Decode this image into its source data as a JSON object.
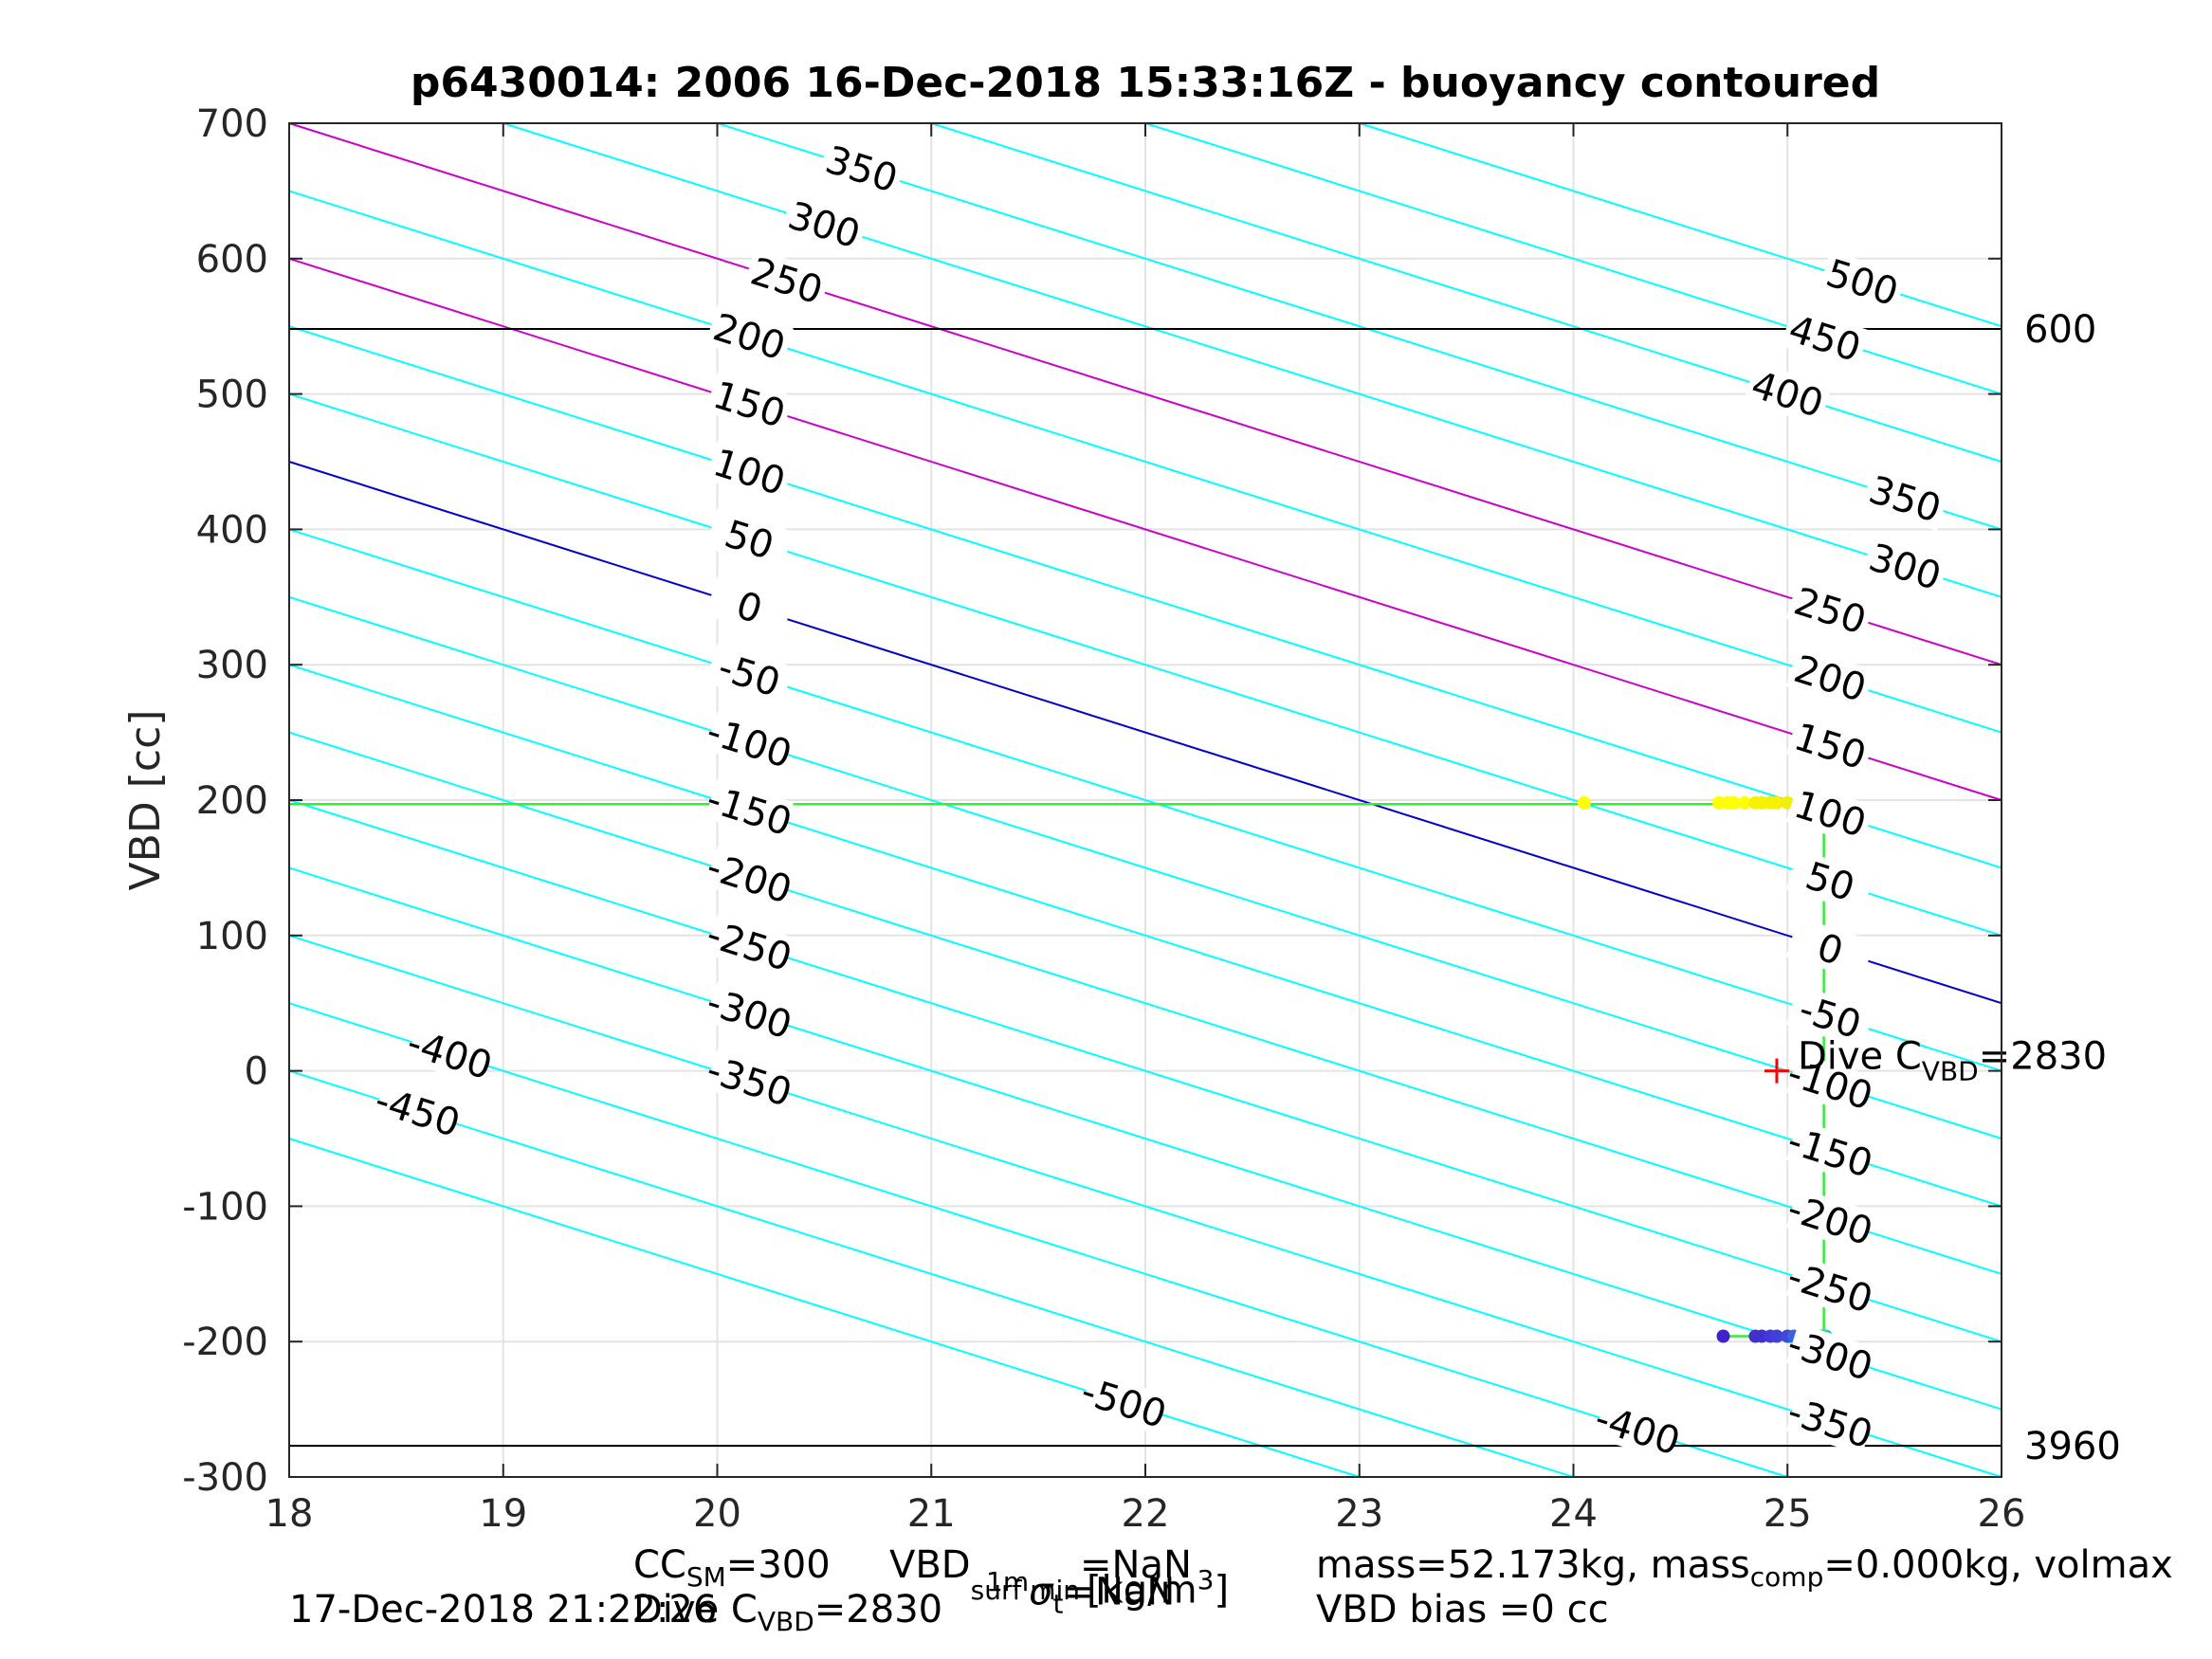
{
  "chart_data": {
    "type": "scatter",
    "title": "p6430014:  2006 16-Dec-2018 15:33:16Z - buoyancy contoured",
    "ylabel": "VBD [cc]",
    "xlabel": "1m σt [kg/m3]",
    "xlim": [
      18,
      26
    ],
    "ylim": [
      -300,
      700
    ],
    "xticks": [
      "18",
      "19",
      "20",
      "21",
      "22",
      "23",
      "24",
      "25",
      "26"
    ],
    "yticks": [
      "-300",
      "-200",
      "-100",
      "0",
      "100",
      "200",
      "300",
      "400",
      "500",
      "600",
      "700"
    ],
    "grid": true,
    "contours": {
      "levels": [
        -500,
        -450,
        -400,
        -350,
        -300,
        -250,
        -200,
        -150,
        -100,
        -50,
        0,
        50,
        100,
        150,
        200,
        250,
        300,
        350,
        400,
        450,
        500
      ],
      "color_default": "#00ffff",
      "color_zero": "#0000cc",
      "color_highlight": "#cc00cc",
      "highlight_levels": [
        150,
        250
      ],
      "labels_left": [
        {
          "text": "350",
          "level": 350
        },
        {
          "text": "300",
          "level": 300
        },
        {
          "text": "250",
          "level": 250
        },
        {
          "text": "200",
          "level": 200
        },
        {
          "text": "150",
          "level": 150
        },
        {
          "text": "100",
          "level": 100
        },
        {
          "text": "50",
          "level": 50
        },
        {
          "text": "0",
          "level": 0
        },
        {
          "text": "-50",
          "level": -50
        },
        {
          "text": "-100",
          "level": -100
        },
        {
          "text": "-150",
          "level": -150
        },
        {
          "text": "-200",
          "level": -200
        },
        {
          "text": "-250",
          "level": -250
        },
        {
          "text": "-300",
          "level": -300
        },
        {
          "text": "-350",
          "level": -350
        },
        {
          "text": "-400",
          "level": -400
        },
        {
          "text": "-450",
          "level": -450
        },
        {
          "text": "-500",
          "level": -500
        }
      ],
      "labels_right": [
        {
          "text": "500",
          "level": 500
        },
        {
          "text": "450",
          "level": 450
        },
        {
          "text": "400",
          "level": 400
        },
        {
          "text": "350",
          "level": 350
        },
        {
          "text": "300",
          "level": 300
        },
        {
          "text": "250",
          "level": 250
        },
        {
          "text": "200",
          "level": 200
        },
        {
          "text": "150",
          "level": 150
        },
        {
          "text": "100",
          "level": 100
        },
        {
          "text": "50",
          "level": 50
        },
        {
          "text": "0",
          "level": 0
        },
        {
          "text": "-50",
          "level": -50
        },
        {
          "text": "-100",
          "level": -100
        },
        {
          "text": "-150",
          "level": -150
        },
        {
          "text": "-200",
          "level": -200
        },
        {
          "text": "-250",
          "level": -250
        },
        {
          "text": "-300",
          "level": -300
        },
        {
          "text": "-350",
          "level": -350
        },
        {
          "text": "-400",
          "level": -400
        }
      ]
    },
    "reference_lines": [
      {
        "y": 548,
        "label": "600",
        "color": "#000000"
      },
      {
        "y": -277,
        "label": "3960",
        "color": "#000000"
      }
    ],
    "path_line": {
      "color": "#33ee33",
      "points": [
        [
          18,
          197
        ],
        [
          25.17,
          197
        ],
        [
          25.17,
          -196
        ],
        [
          24.7,
          -196
        ]
      ]
    },
    "series": [
      {
        "color_hint": "yellow",
        "points": [
          [
            24.05,
            198
          ],
          [
            24.68,
            198
          ],
          [
            24.72,
            198
          ],
          [
            24.75,
            198
          ],
          [
            24.8,
            198
          ],
          [
            24.85,
            198
          ],
          [
            24.88,
            198
          ],
          [
            24.92,
            198
          ],
          [
            24.95,
            198
          ],
          [
            25.0,
            198
          ],
          [
            25.05,
            198
          ],
          [
            25.08,
            198
          ],
          [
            25.1,
            198
          ],
          [
            25.12,
            198
          ],
          [
            25.14,
            198
          ],
          [
            25.16,
            198
          ],
          [
            25.18,
            198
          ]
        ],
        "colors": [
          "#ffff00",
          "#ffff00",
          "#ffff00",
          "#ffff00",
          "#ffff00",
          "#f5f200",
          "#f5f200",
          "#f5f200",
          "#f5f200",
          "#eeee10",
          "#f0e020",
          "#f0d030",
          "#e8c830",
          "#e0c040",
          "#d8c840",
          "#d0c850",
          "#c8d050"
        ]
      },
      {
        "color_hint": "blue",
        "points": [
          [
            24.7,
            -196
          ],
          [
            24.85,
            -196
          ],
          [
            24.88,
            -196
          ],
          [
            24.92,
            -196
          ],
          [
            24.95,
            -196
          ],
          [
            25.0,
            -196
          ],
          [
            25.03,
            -196
          ],
          [
            25.06,
            -196
          ],
          [
            25.09,
            -196
          ],
          [
            25.12,
            -196
          ],
          [
            25.14,
            -196
          ],
          [
            25.16,
            -196
          ],
          [
            25.18,
            -196
          ]
        ],
        "colors": [
          "#4020d0",
          "#4030d0",
          "#4030d0",
          "#4038d8",
          "#4040d8",
          "#4048d8",
          "#4060e0",
          "#4070e0",
          "#3888e0",
          "#30a0d8",
          "#28b8c8",
          "#20c8b8",
          "#20d0b0"
        ]
      }
    ],
    "dive_marker": {
      "x": 24.95,
      "y": 0,
      "color": "#ff0000",
      "label_prefix": "Dive C",
      "label_sub": "VBD",
      "label_suffix": "=2830"
    }
  },
  "footer": {
    "cc_prefix": "CC",
    "cc_sub": "SM",
    "cc_value": "=300",
    "vbd_prefix": "VBD",
    "vbd_sub": "surf min",
    "vbd_value": "=NaN",
    "mass_text": "mass=52.173kg, mass",
    "mass_sub": "comp",
    "mass_value": "=0.000kg, volmax",
    "timestamp": "17-Dec-2018 21:22:26",
    "dive_prefix": "Dive C",
    "dive_sub": "VBD",
    "dive_value": "=2830",
    "sigma_sup": "1m",
    "sigma_sym": "σ",
    "sigma_sub": "t",
    "sigma_value": "=NaN",
    "units": "[kg/m",
    "units_sup": "3",
    "units_close": "]",
    "bias": "VBD bias =0 cc"
  }
}
